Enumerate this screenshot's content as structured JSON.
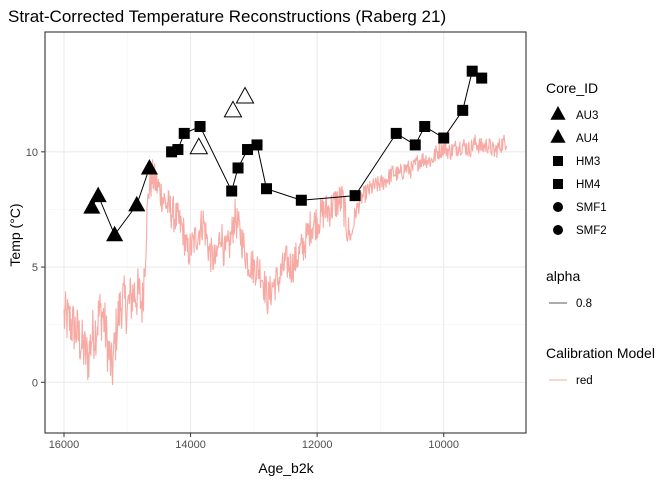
{
  "chart_data": {
    "type": "scatter",
    "title": "Strat-Corrected Temperature Reconstructions (Raberg 21)",
    "xlabel": "Age_b2k",
    "ylabel": "Temp (°C)",
    "xlim": [
      16300,
      8700
    ],
    "ylim": [
      -2.2,
      15.2
    ],
    "x_reversed": true,
    "x_ticks": [
      16000,
      14000,
      12000,
      10000
    ],
    "x_tick_labels": [
      "16000",
      "14000",
      "12000",
      "10000"
    ],
    "y_ticks": [
      0,
      5,
      10
    ],
    "y_tick_labels": [
      "0",
      "5",
      "10"
    ],
    "grid": true,
    "series": [
      {
        "name": "AU3",
        "shape": "filled-triangle",
        "connected": true,
        "points": [
          {
            "x": 15560,
            "y": 7.6
          },
          {
            "x": 15460,
            "y": 8.1
          },
          {
            "x": 15200,
            "y": 6.4
          },
          {
            "x": 14850,
            "y": 7.7
          },
          {
            "x": 14650,
            "y": 9.3
          }
        ]
      },
      {
        "name": "AU4",
        "shape": "open-triangle",
        "connected": false,
        "points": [
          {
            "x": 13870,
            "y": 10.2
          },
          {
            "x": 13330,
            "y": 11.8
          },
          {
            "x": 13140,
            "y": 12.4
          }
        ]
      },
      {
        "name": "HM3",
        "shape": "filled-square",
        "connected": true,
        "points": [
          {
            "x": 14300,
            "y": 10.0
          },
          {
            "x": 14200,
            "y": 10.1
          },
          {
            "x": 14100,
            "y": 10.8
          },
          {
            "x": 13850,
            "y": 11.1
          },
          {
            "x": 13350,
            "y": 8.3
          },
          {
            "x": 13250,
            "y": 9.3
          },
          {
            "x": 13100,
            "y": 10.1
          },
          {
            "x": 12950,
            "y": 10.3
          },
          {
            "x": 12800,
            "y": 8.4
          },
          {
            "x": 12250,
            "y": 7.9
          },
          {
            "x": 11400,
            "y": 8.1
          },
          {
            "x": 10750,
            "y": 10.8
          },
          {
            "x": 10450,
            "y": 10.3
          },
          {
            "x": 10300,
            "y": 11.1
          },
          {
            "x": 10000,
            "y": 10.6
          },
          {
            "x": 9700,
            "y": 11.8
          },
          {
            "x": 9550,
            "y": 13.5
          },
          {
            "x": 9400,
            "y": 13.2
          }
        ]
      },
      {
        "name": "HM4",
        "shape": "filled-square",
        "connected": false,
        "points": []
      },
      {
        "name": "SMF1",
        "shape": "filled-circle",
        "connected": false,
        "points": []
      },
      {
        "name": "SMF2",
        "shape": "filled-circle",
        "connected": false,
        "points": []
      }
    ],
    "calibration_line": {
      "color": "#f8a9a3",
      "anchors": [
        [
          16000,
          2.8
        ],
        [
          15900,
          2.6
        ],
        [
          15800,
          2.2
        ],
        [
          15700,
          1.5
        ],
        [
          15620,
          1.0
        ],
        [
          15560,
          2.0
        ],
        [
          15500,
          2.3
        ],
        [
          15440,
          3.0
        ],
        [
          15380,
          2.9
        ],
        [
          15300,
          1.4
        ],
        [
          15240,
          0.4
        ],
        [
          15160,
          2.6
        ],
        [
          15080,
          3.6
        ],
        [
          15000,
          3.2
        ],
        [
          14900,
          3.9
        ],
        [
          14820,
          3.8
        ],
        [
          14760,
          3.4
        ],
        [
          14700,
          6.6
        ],
        [
          14660,
          8.4
        ],
        [
          14600,
          8.9
        ],
        [
          14500,
          8.4
        ],
        [
          14400,
          7.8
        ],
        [
          14300,
          7.4
        ],
        [
          14200,
          7.0
        ],
        [
          14120,
          6.6
        ],
        [
          14050,
          5.6
        ],
        [
          13960,
          6.0
        ],
        [
          13880,
          6.5
        ],
        [
          13800,
          7.0
        ],
        [
          13700,
          5.6
        ],
        [
          13600,
          5.2
        ],
        [
          13520,
          6.6
        ],
        [
          13460,
          5.5
        ],
        [
          13380,
          6.0
        ],
        [
          13300,
          7.2
        ],
        [
          13200,
          6.3
        ],
        [
          13100,
          5.3
        ],
        [
          13000,
          5.0
        ],
        [
          12900,
          4.9
        ],
        [
          12850,
          4.4
        ],
        [
          12780,
          3.6
        ],
        [
          12700,
          4.2
        ],
        [
          12600,
          4.5
        ],
        [
          12500,
          5.2
        ],
        [
          12400,
          5.0
        ],
        [
          12300,
          5.5
        ],
        [
          12200,
          6.0
        ],
        [
          12100,
          6.8
        ],
        [
          12000,
          7.0
        ],
        [
          11900,
          7.4
        ],
        [
          11800,
          7.5
        ],
        [
          11700,
          7.8
        ],
        [
          11600,
          7.9
        ],
        [
          11520,
          6.6
        ],
        [
          11460,
          6.3
        ],
        [
          11400,
          7.3
        ],
        [
          11300,
          8.0
        ],
        [
          11200,
          8.3
        ],
        [
          11100,
          8.5
        ],
        [
          11000,
          8.6
        ],
        [
          10900,
          8.8
        ],
        [
          10800,
          9.1
        ],
        [
          10700,
          9.0
        ],
        [
          10600,
          9.3
        ],
        [
          10500,
          9.2
        ],
        [
          10400,
          9.6
        ],
        [
          10300,
          9.7
        ],
        [
          10200,
          9.6
        ],
        [
          10100,
          10.0
        ],
        [
          10000,
          10.2
        ],
        [
          9900,
          10.0
        ],
        [
          9800,
          10.2
        ],
        [
          9700,
          10.3
        ],
        [
          9600,
          10.1
        ],
        [
          9500,
          10.4
        ],
        [
          9400,
          10.2
        ],
        [
          9300,
          10.3
        ],
        [
          9200,
          10.0
        ],
        [
          9100,
          10.3
        ],
        [
          9000,
          10.5
        ]
      ]
    },
    "legend": {
      "placement": "right",
      "groups": [
        {
          "title": "Core_ID",
          "items": [
            {
              "label": "AU3",
              "symbol": "triangle"
            },
            {
              "label": "AU4",
              "symbol": "triangle"
            },
            {
              "label": "HM3",
              "symbol": "square"
            },
            {
              "label": "HM4",
              "symbol": "square"
            },
            {
              "label": "SMF1",
              "symbol": "circle"
            },
            {
              "label": "SMF2",
              "symbol": "circle"
            }
          ]
        },
        {
          "title": "alpha",
          "items": [
            {
              "label": "0.8",
              "symbol": "line-gray"
            }
          ]
        },
        {
          "title": "Calibration Model",
          "items": [
            {
              "label": "red",
              "symbol": "line-red"
            }
          ]
        }
      ]
    }
  },
  "colors": {
    "series_marker": "#000000",
    "calibration": "#f8a9a3",
    "grid_major": "#ebebeb",
    "grid_minor": "#f5f5f5",
    "panel_border": "#333333",
    "legend_alpha_line": "#595959"
  }
}
